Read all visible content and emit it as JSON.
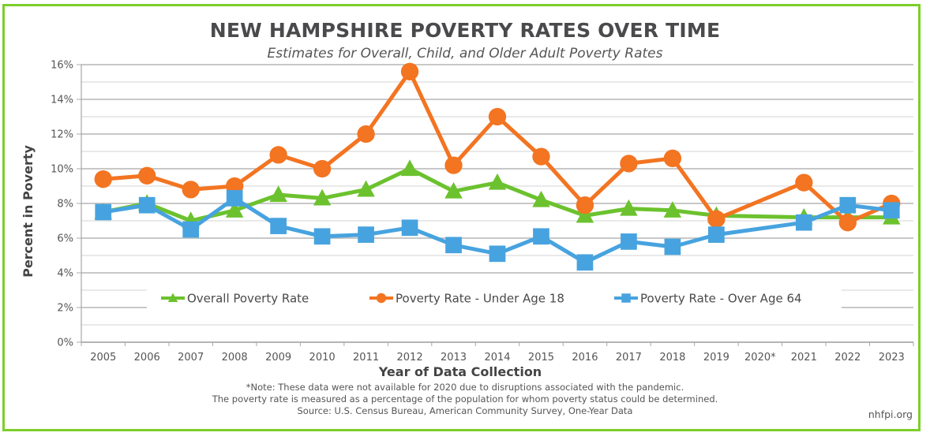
{
  "chart_data": {
    "type": "line",
    "title": "NEW HAMPSHIRE POVERTY RATES OVER TIME",
    "subtitle": "Estimates for Overall, Child, and Older Adult Poverty Rates",
    "xlabel": "Year of Data Collection",
    "ylabel": "Percent in Poverty",
    "ylim": [
      0,
      16
    ],
    "yticks": [
      0,
      2,
      4,
      6,
      8,
      10,
      12,
      14,
      16
    ],
    "ytick_labels": [
      "0%",
      "2%",
      "4%",
      "6%",
      "8%",
      "10%",
      "12%",
      "14%",
      "16%"
    ],
    "grid": true,
    "legend_position": "inside-bottom-center",
    "categories": [
      "2005",
      "2006",
      "2007",
      "2008",
      "2009",
      "2010",
      "2011",
      "2012",
      "2013",
      "2014",
      "2015",
      "2016",
      "2017",
      "2018",
      "2019",
      "2020*",
      "2021",
      "2022",
      "2023"
    ],
    "series": [
      {
        "name": "Overall Poverty Rate",
        "color": "#6cc22e",
        "marker": "triangle",
        "values": [
          7.5,
          8.0,
          7.0,
          7.6,
          8.5,
          8.3,
          8.8,
          10.0,
          8.7,
          9.2,
          8.2,
          7.3,
          7.7,
          7.6,
          7.3,
          null,
          7.2,
          7.2,
          7.2
        ]
      },
      {
        "name": "Poverty Rate - Under Age 18",
        "color": "#f37421",
        "marker": "circle",
        "values": [
          9.4,
          9.6,
          8.8,
          9.0,
          10.8,
          10.0,
          12.0,
          15.6,
          10.2,
          13.0,
          10.7,
          7.9,
          10.3,
          10.6,
          7.1,
          null,
          9.2,
          6.9,
          8.0
        ]
      },
      {
        "name": "Poverty Rate - Over Age 64",
        "color": "#47a3df",
        "marker": "square",
        "values": [
          7.5,
          7.9,
          6.5,
          8.3,
          6.7,
          6.1,
          6.2,
          6.6,
          5.6,
          5.1,
          6.1,
          4.6,
          5.8,
          5.5,
          6.2,
          null,
          6.9,
          7.9,
          7.6
        ]
      }
    ],
    "notes": [
      "*Note: These data were not available for 2020 due to disruptions associated with the pandemic.",
      "The poverty rate is measured as a percentage of the population for whom poverty status could be determined.",
      "Source: U.S. Census Bureau, American Community Survey, One-Year Data"
    ],
    "site": "nhfpi.org"
  },
  "colors": {
    "frame": "#7ccf2a",
    "grid_major": "#b5b5b5",
    "grid_minor": "#dcdcdc"
  }
}
